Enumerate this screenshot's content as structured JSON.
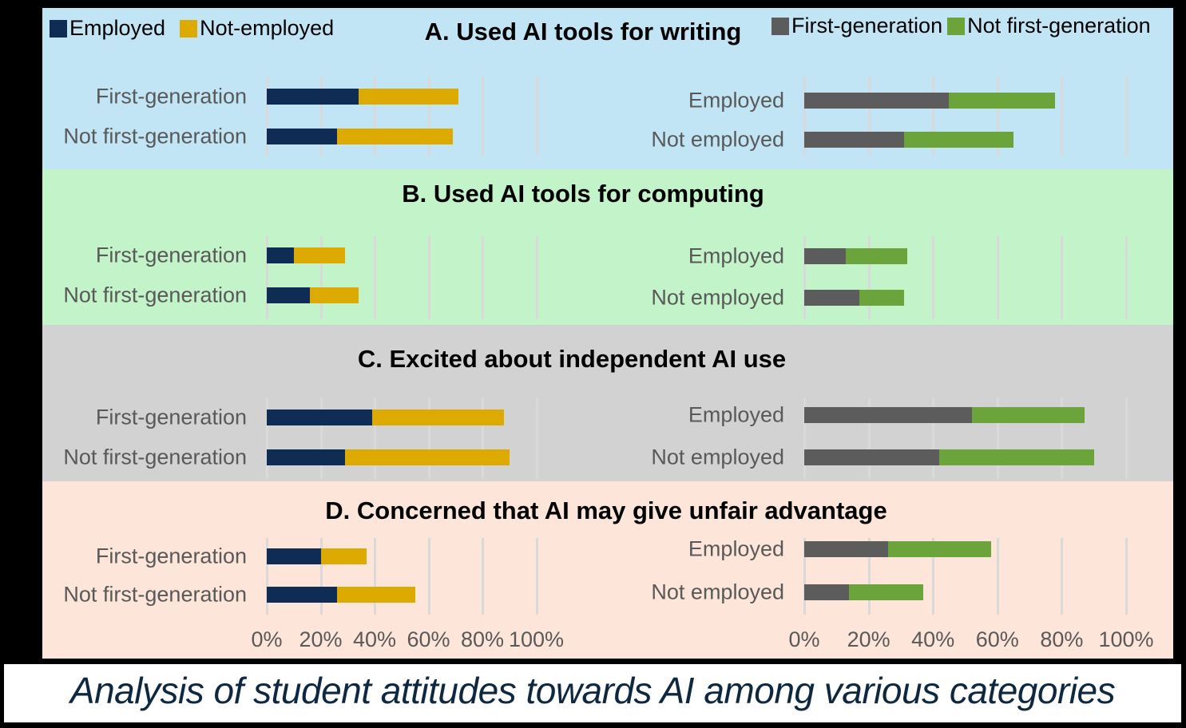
{
  "colors": {
    "employed": "#0e2c54",
    "not_employed": "#dcaa00",
    "first_generation": "#5c5c5c",
    "not_first_generation": "#6aa43a",
    "panel_A_bg": "#c1e5f5",
    "panel_B_bg": "#c3f3c8",
    "panel_C_bg": "#d2d2d2",
    "panel_D_bg": "#fde5d9",
    "gridline": "#d9d9d9",
    "axis_text": "#595959",
    "caption_text": "#0e2841"
  },
  "legend_left": {
    "items": [
      {
        "label": "Employed"
      },
      {
        "label": "Not-employed"
      }
    ]
  },
  "legend_right": {
    "items": [
      {
        "label": "First-generation"
      },
      {
        "label": "Not first-generation"
      }
    ]
  },
  "axis_ticks": [
    "0%",
    "20%",
    "40%",
    "60%",
    "80%",
    "100%"
  ],
  "left_row_labels": [
    "First-generation",
    "Not first-generation"
  ],
  "right_row_labels": [
    "Employed",
    "Not employed"
  ],
  "caption": "Analysis of student attitudes towards AI among various categories",
  "chart_data": [
    {
      "panel": "A",
      "title": "A. Used AI tools for writing",
      "type": "bar",
      "orientation": "horizontal",
      "stacked": true,
      "subcharts": [
        {
          "side": "left",
          "categories": [
            "First-generation",
            "Not first-generation"
          ],
          "series": [
            {
              "name": "Employed",
              "values": [
                34,
                26
              ]
            },
            {
              "name": "Not-employed",
              "values": [
                37,
                43
              ]
            }
          ],
          "xlim": [
            0,
            100
          ],
          "xlabel_format": "percent"
        },
        {
          "side": "right",
          "categories": [
            "Employed",
            "Not employed"
          ],
          "series": [
            {
              "name": "First-generation",
              "values": [
                45,
                31
              ]
            },
            {
              "name": "Not first-generation",
              "values": [
                33,
                34
              ]
            }
          ],
          "xlim": [
            0,
            100
          ],
          "xlabel_format": "percent"
        }
      ]
    },
    {
      "panel": "B",
      "title": "B. Used AI tools for computing",
      "type": "bar",
      "orientation": "horizontal",
      "stacked": true,
      "subcharts": [
        {
          "side": "left",
          "categories": [
            "First-generation",
            "Not first-generation"
          ],
          "series": [
            {
              "name": "Employed",
              "values": [
                10,
                16
              ]
            },
            {
              "name": "Not-employed",
              "values": [
                19,
                18
              ]
            }
          ],
          "xlim": [
            0,
            100
          ]
        },
        {
          "side": "right",
          "categories": [
            "Employed",
            "Not employed"
          ],
          "series": [
            {
              "name": "First-generation",
              "values": [
                13,
                17
              ]
            },
            {
              "name": "Not first-generation",
              "values": [
                19,
                14
              ]
            }
          ],
          "xlim": [
            0,
            100
          ]
        }
      ]
    },
    {
      "panel": "C",
      "title": "C. Excited about independent AI use",
      "type": "bar",
      "orientation": "horizontal",
      "stacked": true,
      "subcharts": [
        {
          "side": "left",
          "categories": [
            "First-generation",
            "Not first-generation"
          ],
          "series": [
            {
              "name": "Employed",
              "values": [
                39,
                29
              ]
            },
            {
              "name": "Not-employed",
              "values": [
                49,
                61
              ]
            }
          ],
          "xlim": [
            0,
            100
          ]
        },
        {
          "side": "right",
          "categories": [
            "Employed",
            "Not employed"
          ],
          "series": [
            {
              "name": "First-generation",
              "values": [
                52,
                42
              ]
            },
            {
              "name": "Not first-generation",
              "values": [
                35,
                48
              ]
            }
          ],
          "xlim": [
            0,
            100
          ]
        }
      ]
    },
    {
      "panel": "D",
      "title": "D. Concerned that AI may give unfair advantage",
      "type": "bar",
      "orientation": "horizontal",
      "stacked": true,
      "subcharts": [
        {
          "side": "left",
          "categories": [
            "First-generation",
            "Not first-generation"
          ],
          "series": [
            {
              "name": "Employed",
              "values": [
                20,
                26
              ]
            },
            {
              "name": "Not-employed",
              "values": [
                17,
                29
              ]
            }
          ],
          "xlim": [
            0,
            100
          ]
        },
        {
          "side": "right",
          "categories": [
            "Employed",
            "Not employed"
          ],
          "series": [
            {
              "name": "First-generation",
              "values": [
                26,
                14
              ]
            },
            {
              "name": "Not first-generation",
              "values": [
                32,
                23
              ]
            }
          ],
          "xlim": [
            0,
            100
          ]
        }
      ]
    }
  ]
}
